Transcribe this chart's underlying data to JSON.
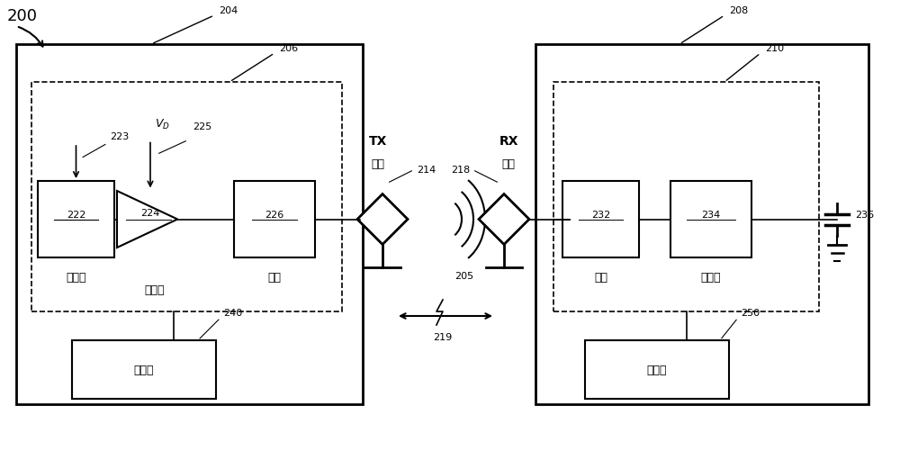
{
  "bg_color": "#ffffff",
  "line_color": "#000000",
  "fig_label": "200",
  "tx_box_label": "204",
  "tx_inner_label": "206",
  "rx_box_label": "208",
  "rx_inner_label": "210",
  "osc_label": "222",
  "osc_text": "振荡器",
  "drv_label": "224",
  "drv_text": "驱动器",
  "fe_tx_label": "226",
  "fe_tx_text": "前端",
  "fe_rx_label": "232",
  "fe_rx_text": "前端",
  "rect_label": "234",
  "rect_text": "整流器",
  "ctrl_tx_label": "240",
  "ctrl_tx_text": "控制器",
  "ctrl_rx_label": "250",
  "ctrl_rx_text": "控制器",
  "tx_elem_label": "214",
  "tx_elem_text": "TX\n元件",
  "rx_elem_label": "218",
  "rx_elem_text": "RX\n元件",
  "arrow223_label": "223",
  "vd_label": "225",
  "vd_text": "V",
  "coupling_label": "205",
  "bidirectional_label": "219",
  "cap_label": "236"
}
